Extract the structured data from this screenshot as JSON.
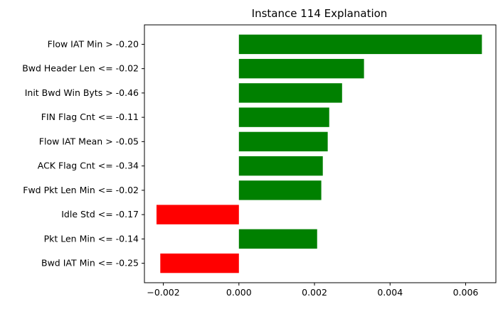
{
  "chart_data": {
    "type": "bar",
    "orientation": "horizontal",
    "title": "Instance 114 Explanation",
    "xlabel": "",
    "ylabel": "",
    "categories": [
      "Flow IAT Min > -0.20",
      "Bwd Header Len <= -0.02",
      "Init Bwd Win Byts > -0.46",
      "FIN Flag Cnt <= -0.11",
      "Flow IAT Mean > -0.05",
      "ACK Flag Cnt <= -0.34",
      "Fwd Pkt Len Min <= -0.02",
      "Idle Std <= -0.17",
      "Pkt Len Min <= -0.14",
      "Bwd IAT Min <= -0.25"
    ],
    "values": [
      0.00643,
      0.00331,
      0.00273,
      0.00239,
      0.00235,
      0.00222,
      0.00218,
      -0.00218,
      0.00207,
      -0.00208
    ],
    "xlim": [
      -0.0025,
      0.0068
    ],
    "xticks": [
      -0.002,
      0.0,
      0.002,
      0.004,
      0.006
    ],
    "xtick_labels": [
      "−0.002",
      "0.000",
      "0.002",
      "0.004",
      "0.006"
    ],
    "colors": {
      "positive": "#008000",
      "negative": "#ff0000"
    },
    "grid": false,
    "legend": "none"
  }
}
